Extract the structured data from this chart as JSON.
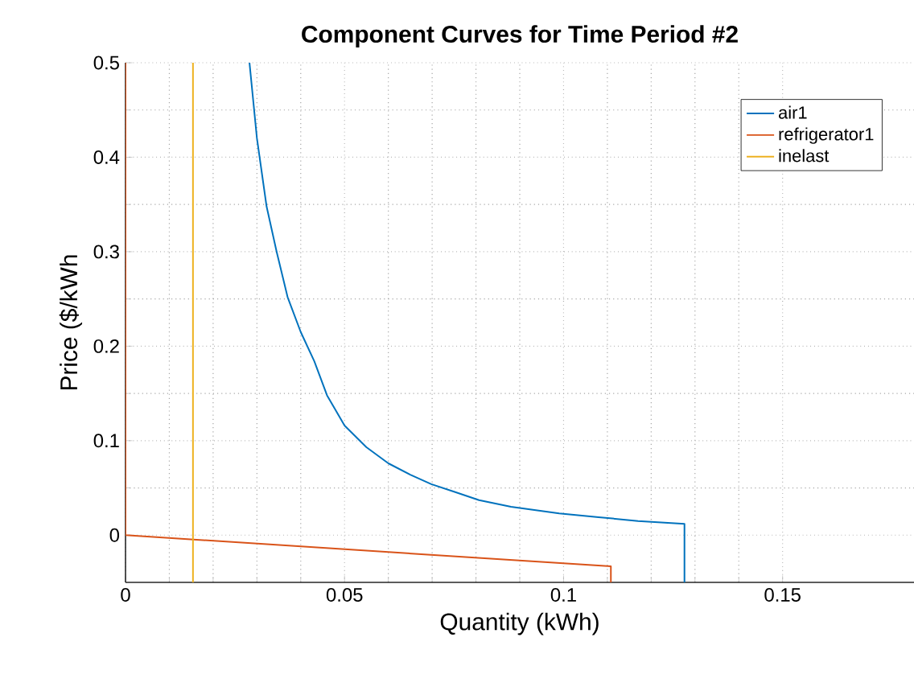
{
  "chart_data": {
    "type": "line",
    "title": "Component Curves for Time Period #2",
    "xlabel": "Quantity (kWh)",
    "ylabel": "Price ($/kWh",
    "xlim": [
      0,
      0.18
    ],
    "ylim": [
      -0.05,
      0.5
    ],
    "xticks": [
      0,
      0.05,
      0.1,
      0.15
    ],
    "yticks": [
      0,
      0.1,
      0.2,
      0.3,
      0.4,
      0.5
    ],
    "grid": true,
    "legend": "top right",
    "series": [
      {
        "name": "air1",
        "color": "#0072bd",
        "x": [
          0.0283,
          0.03,
          0.0322,
          0.0345,
          0.037,
          0.04,
          0.0431,
          0.046,
          0.05,
          0.055,
          0.06,
          0.065,
          0.0698,
          0.075,
          0.0807,
          0.088,
          0.099,
          0.108,
          0.117,
          0.1276,
          0.1276
        ],
        "values": [
          0.5,
          0.42,
          0.348,
          0.3,
          0.252,
          0.215,
          0.184,
          0.148,
          0.116,
          0.093,
          0.076,
          0.064,
          0.054,
          0.046,
          0.037,
          0.03,
          0.023,
          0.019,
          0.015,
          0.012,
          -0.05
        ]
      },
      {
        "name": "refrigerator1",
        "color": "#d95319",
        "x": [
          0,
          0,
          0.1108,
          0.1108
        ],
        "values": [
          0.5,
          0,
          -0.033,
          -0.05
        ]
      },
      {
        "name": "inelast",
        "color": "#edb120",
        "x": [
          0.0154,
          0.0154
        ],
        "values": [
          -0.05,
          0.5
        ]
      }
    ]
  }
}
